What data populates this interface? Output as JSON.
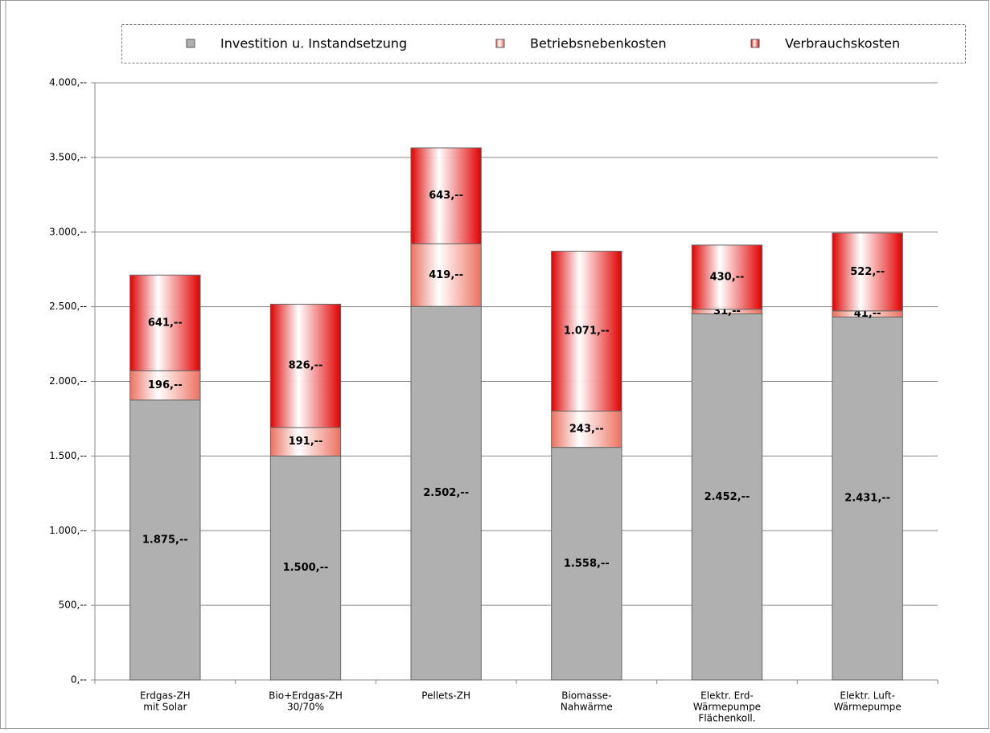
{
  "chart_data": {
    "type": "stacked_bar",
    "categories": [
      [
        "Erdgas-ZH",
        "mit Solar"
      ],
      [
        "Bio+Erdgas-ZH",
        "30/70%"
      ],
      [
        "Pellets-ZH"
      ],
      [
        "Biomasse-",
        "Nahwärme"
      ],
      [
        "Elektr. Erd-",
        "Wärmepumpe",
        "Flächenkoll."
      ],
      [
        "Elektr. Luft-",
        "Wärmepumpe"
      ]
    ],
    "series": [
      {
        "name": "Investition u. Instandsetzung",
        "color": "#b0b0b0",
        "gradient": false,
        "values": [
          1875,
          1500,
          2502,
          1558,
          2452,
          2431
        ],
        "value_labels": [
          "1.875,--",
          "1.500,--",
          "2.502,--",
          "1.558,--",
          "2.452,--",
          "2.431,--"
        ]
      },
      {
        "name": "Betriebsnebenkosten",
        "color": "#ec7060",
        "gradient": true,
        "values": [
          196,
          191,
          419,
          243,
          31,
          41
        ],
        "value_labels": [
          "196,--",
          "191,--",
          "419,--",
          "243,--",
          "31,--",
          "41,--"
        ]
      },
      {
        "name": "Verbrauchskosten",
        "color": "#e00000",
        "gradient": true,
        "values": [
          641,
          826,
          643,
          1071,
          430,
          522
        ],
        "value_labels": [
          "641,--",
          "826,--",
          "643,--",
          "1.071,--",
          "430,--",
          "522,--"
        ]
      }
    ],
    "ylim": [
      0,
      4000
    ],
    "yticks": [
      {
        "value": 0,
        "label": "0,--"
      },
      {
        "value": 500,
        "label": "500,--"
      },
      {
        "value": 1000,
        "label": "1.000,--"
      },
      {
        "value": 1500,
        "label": "1.500,--"
      },
      {
        "value": 2000,
        "label": "2.000,--"
      },
      {
        "value": 2500,
        "label": "2.500,--"
      },
      {
        "value": 3000,
        "label": "3.000,--"
      },
      {
        "value": 3500,
        "label": "3.500,--"
      },
      {
        "value": 4000,
        "label": "4.000,--"
      }
    ],
    "grid": true,
    "legend": "top"
  }
}
